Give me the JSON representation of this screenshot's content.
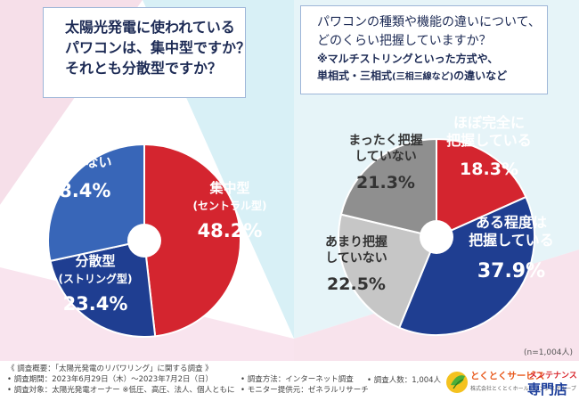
{
  "colors": {
    "red": "#d4252f",
    "blue": "#3866b8",
    "navy": "#1f3e91",
    "dark_gray": "#8f8f8f",
    "light_gray": "#c6c6c6"
  },
  "question1": {
    "line1": "太陽光発電に使われている",
    "line2": "パワコンは、集中型ですか？",
    "line3": "それとも分散型ですか？"
  },
  "question2": {
    "line1": "パワコンの種類や機能の違いについて、",
    "line2": "どのくらい把握していますか？",
    "note1": "※マルチストリングといった方式や、",
    "note2a": "単相式・三相式",
    "note2b": "(三相三線など)",
    "note2c": "の違いなど"
  },
  "chart_data": [
    {
      "type": "pie",
      "categories": [
        "集中型(セントラル型)",
        "分散型(ストリング型)",
        "わからない"
      ],
      "values": [
        48.2,
        23.4,
        28.4
      ],
      "labels": [
        {
          "lines": [
            "集中型",
            "(セントラル型)"
          ],
          "value": "48.2%"
        },
        {
          "lines": [
            "分散型",
            "(ストリング型)"
          ],
          "value": "23.4%"
        },
        {
          "lines": [
            "わからない"
          ],
          "value": "28.4%"
        }
      ],
      "colors": [
        "#d4252f",
        "#1f3e91",
        "#3866b8"
      ]
    },
    {
      "type": "pie",
      "categories": [
        "ほぼ完全に把握している",
        "ある程度は把握している",
        "あまり把握していない",
        "まったく把握していない"
      ],
      "values": [
        18.3,
        37.9,
        22.5,
        21.3
      ],
      "labels": [
        {
          "lines": [
            "ほぼ完全に",
            "把握している"
          ],
          "value": "18.3%"
        },
        {
          "lines": [
            "ある程度は",
            "把握している"
          ],
          "value": "37.9%"
        },
        {
          "lines": [
            "あまり把握",
            "していない"
          ],
          "value": "22.5%"
        },
        {
          "lines": [
            "まったく把握",
            "していない"
          ],
          "value": "21.3%"
        }
      ],
      "colors": [
        "#d4252f",
        "#1f3e91",
        "#c6c6c6",
        "#8f8f8f"
      ],
      "sample_size": "(n=1,004人)"
    }
  ],
  "footer": {
    "line1": "《 調査概要：「太陽光発電のリパワリング」に関する調査 》",
    "line2": "• 調査期間：2023年6月29日（木）～2023年7月2日（日）",
    "line3": "• 調査対象：太陽光発電オーナー ※低圧、高圧、法人、個人ともに",
    "method": "• 調査方法：インターネット調査",
    "provider": "• モニター提供元：ゼネラルリサーチ",
    "respondents": "• 調査人数：1,004人"
  },
  "logo": {
    "brand": "とくとくサービス",
    "sub": "株式会社とくとくホールディングスグループ",
    "maint": "メンテナンス",
    "shop": "専門店"
  }
}
